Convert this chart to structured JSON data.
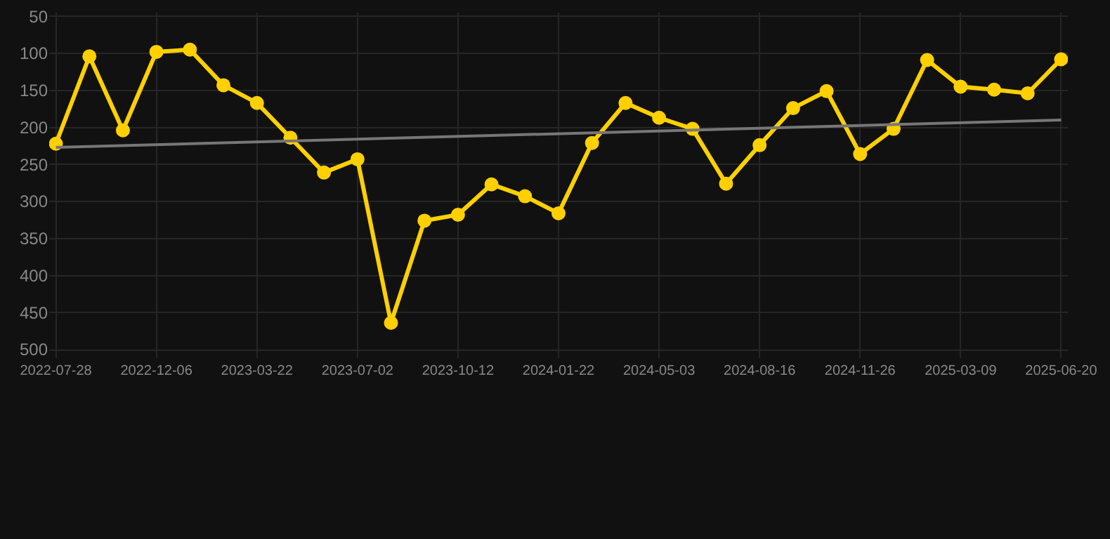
{
  "chart_data": {
    "type": "line",
    "categories": [
      "2022-07-28",
      null,
      null,
      "2022-12-06",
      null,
      null,
      "2023-03-22",
      null,
      null,
      "2023-07-02",
      null,
      null,
      "2023-10-12",
      null,
      null,
      "2024-01-22",
      null,
      null,
      "2024-05-03",
      null,
      null,
      "2024-08-16",
      null,
      null,
      "2024-11-26",
      null,
      null,
      "2025-03-09",
      null,
      null,
      "2025-06-20"
    ],
    "series": [
      {
        "color": "#ffd000",
        "marker": "circle",
        "values": [
          222,
          104,
          204,
          98,
          95,
          143,
          167,
          214,
          261,
          243,
          464,
          326,
          318,
          277,
          293,
          316,
          221,
          167,
          187,
          202,
          276,
          224,
          174,
          151,
          236,
          202,
          109,
          145,
          149,
          154,
          108
        ]
      },
      {
        "type": "line",
        "color": "#777777",
        "marker": "none",
        "values": [
          227,
          null,
          null,
          null,
          null,
          null,
          null,
          null,
          null,
          null,
          null,
          null,
          null,
          null,
          null,
          null,
          null,
          null,
          null,
          null,
          null,
          null,
          null,
          null,
          null,
          null,
          null,
          null,
          null,
          null,
          190
        ]
      }
    ],
    "ylim": [
      500,
      45
    ],
    "yticks": [
      50,
      100,
      150,
      200,
      250,
      300,
      350,
      400,
      450,
      500
    ],
    "grid": true,
    "line_style": "solid"
  }
}
